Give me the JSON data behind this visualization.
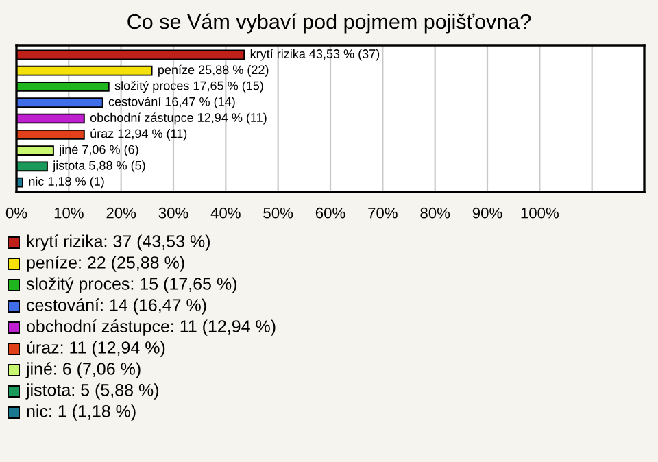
{
  "chart_data": {
    "type": "bar",
    "orientation": "horizontal",
    "title": "Co se Vám vybaví pod pojmem pojišťovna?",
    "categories": [
      null,
      null,
      null,
      null,
      null,
      null,
      null,
      null,
      null
    ],
    "values": [
      43.53,
      25.88,
      17.65,
      16.47,
      12.94,
      12.94,
      7.06,
      5.88,
      1.18
    ],
    "colors": [
      "#c0201a",
      "#f5e10a",
      "#1fb51f",
      "#3f6ee8",
      "#c01fd0",
      "#e0401a",
      "#c8f870",
      "#1a9a5a",
      "#1a7890"
    ],
    "value_labels": [
      "krytí rizika 43,53 % (37)",
      "peníze 25,88 % (22)",
      "složitý proces 17,65 % (15)",
      "cestování 16,47 % (14)",
      "obchodní zástupce 12,94 % (11)",
      "úraz 12,94 % (11)",
      "jiné 7,06 % (6)",
      "jistota 5,88 % (5)",
      "nic 1,18 % (1)"
    ],
    "xlim": [
      0,
      120
    ],
    "xticks": [
      {
        "value": 0,
        "label": "0%"
      },
      {
        "value": 10,
        "label": "10%"
      },
      {
        "value": 20,
        "label": "20%"
      },
      {
        "value": 30,
        "label": "30%"
      },
      {
        "value": 40,
        "label": "40%"
      },
      {
        "value": 50,
        "label": "50%"
      },
      {
        "value": 60,
        "label": "60%"
      },
      {
        "value": 70,
        "label": "70%"
      },
      {
        "value": 80,
        "label": "80%"
      },
      {
        "value": 90,
        "label": "90%"
      },
      {
        "value": 100,
        "label": "100%"
      },
      {
        "value": 110,
        "label": null
      }
    ],
    "tick_labels": "x",
    "grid": "x",
    "annotations": [
      "krytí rizika: 37 (43,53 %)",
      "peníze: 22 (25,88 %)",
      "složitý proces: 15 (17,65 %)",
      "cestování: 14 (16,47 %)",
      "obchodní zástupce: 11 (12,94 %)",
      "úraz: 11 (12,94 %)",
      "jiné: 6 (7,06 %)",
      "jistota: 5 (5,88 %)",
      "nic: 1 (1,18 %)"
    ]
  }
}
